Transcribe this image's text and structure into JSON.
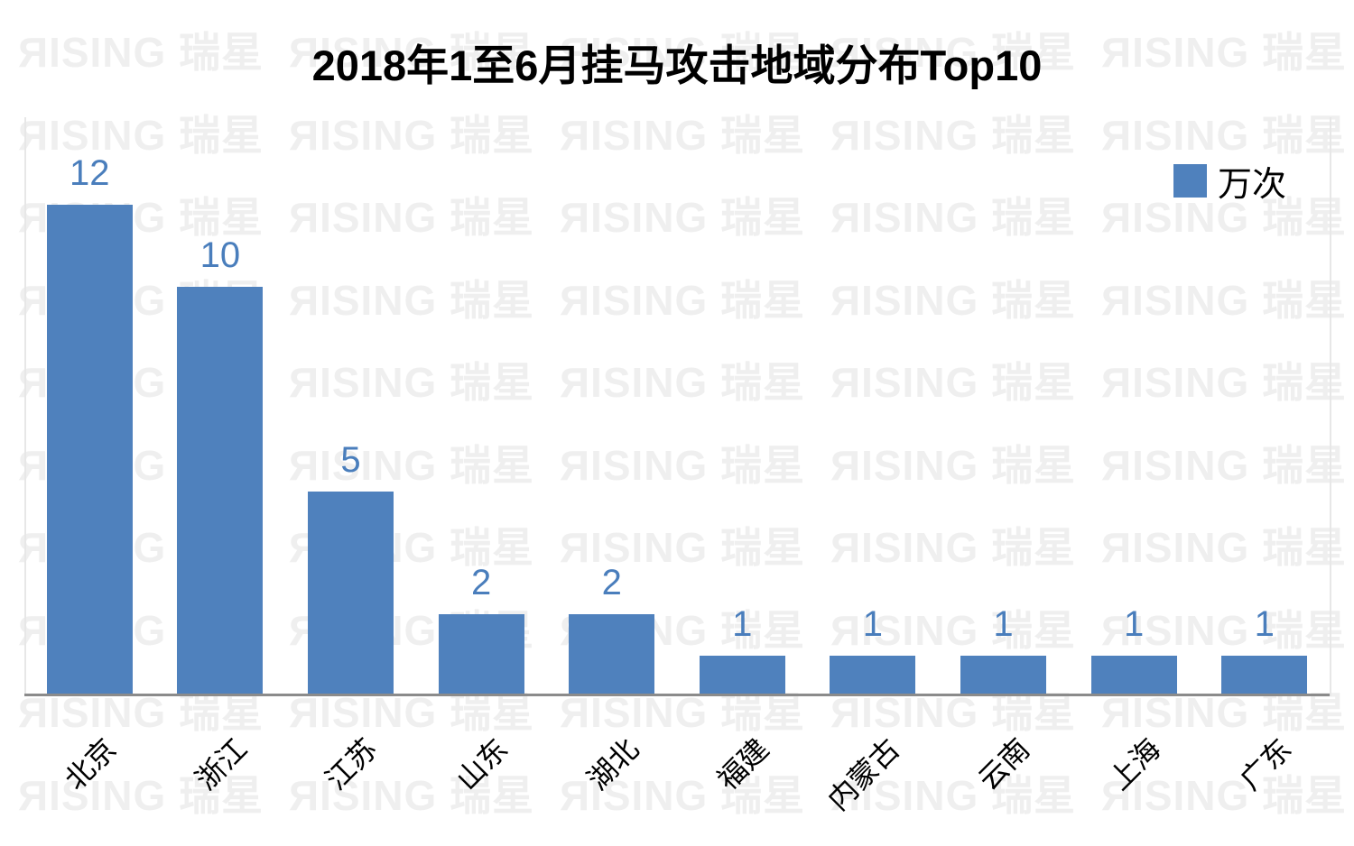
{
  "title": "2018年1至6月挂马攻击地域分布Top10",
  "legend": {
    "label": "万次",
    "swatch_color": "#4F81BD",
    "position": "top-right"
  },
  "watermark": {
    "text": "ЯISING 瑞星",
    "color": "#EFEFEF"
  },
  "colors": {
    "bar": "#4F81BD",
    "value_label": "#4A7EBC",
    "axis_line": "#8B8B8B",
    "plot_border": "#E7E7E7",
    "title": "#000000"
  },
  "chart_data": {
    "type": "bar",
    "title": "2018年1至6月挂马攻击地域分布Top10",
    "categories": [
      "北京",
      "浙江",
      "江苏",
      "山东",
      "湖北",
      "福建",
      "内蒙古",
      "云南",
      "上海",
      "广东"
    ],
    "values": [
      12,
      10,
      5,
      2,
      2,
      1,
      1,
      1,
      1,
      1
    ],
    "unit": "万次",
    "xlabel": "",
    "ylabel": "",
    "ylim": [
      0,
      12
    ],
    "grid": false,
    "data_labels": true,
    "legend_entries": [
      "万次"
    ],
    "legend_position": "top-right",
    "x_tick_rotation": 45
  }
}
